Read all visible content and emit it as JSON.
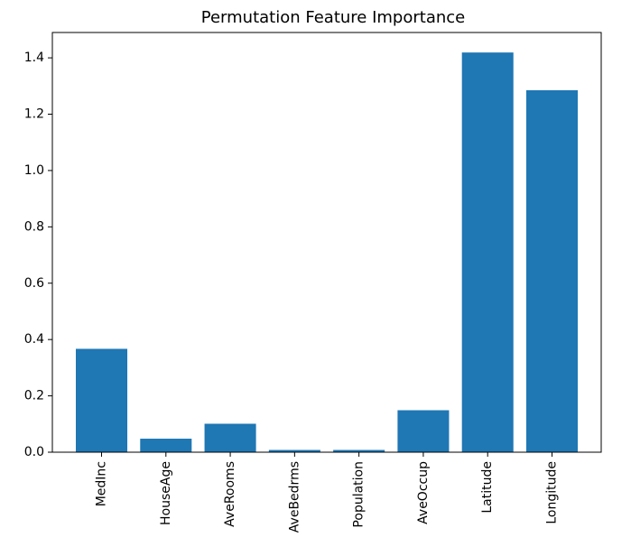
{
  "chart_data": {
    "type": "bar",
    "title": "Permutation Feature Importance",
    "xlabel": "",
    "ylabel": "",
    "categories": [
      "MedInc",
      "HouseAge",
      "AveRooms",
      "AveBedrms",
      "Population",
      "AveOccup",
      "Latitude",
      "Longitude"
    ],
    "values": [
      0.367,
      0.048,
      0.101,
      0.008,
      0.008,
      0.149,
      1.419,
      1.285
    ],
    "ylim": [
      0.0,
      1.49
    ],
    "yticks": [
      "0.0",
      "0.2",
      "0.4",
      "0.6",
      "0.8",
      "1.0",
      "1.2",
      "1.4"
    ],
    "bar_color": "#1f77b4",
    "grid": false,
    "legend": "none"
  }
}
